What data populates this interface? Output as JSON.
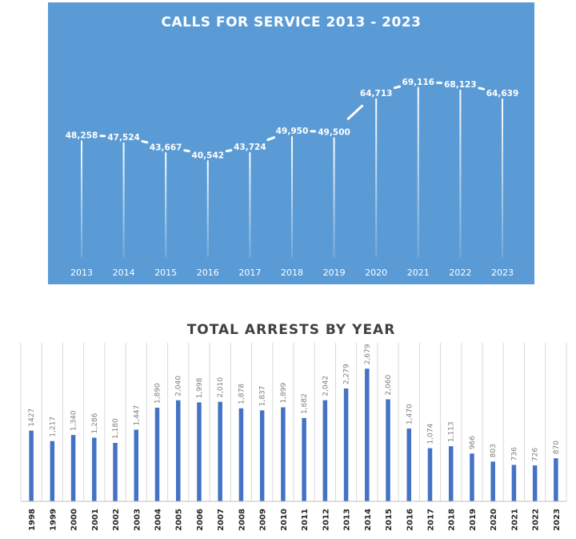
{
  "chart_data": [
    {
      "type": "line",
      "title": "CALLS FOR SERVICE 2013 - 2023",
      "categories": [
        "2013",
        "2014",
        "2015",
        "2016",
        "2017",
        "2018",
        "2019",
        "2020",
        "2021",
        "2022",
        "2023"
      ],
      "values": [
        48258,
        47524,
        43667,
        40542,
        43724,
        49950,
        49500,
        64713,
        69116,
        68123,
        64639
      ],
      "value_labels": [
        "48,258",
        "47,524",
        "43,667",
        "40,542",
        "43,724",
        "49,950",
        "49,500",
        "64,713",
        "69,116",
        "68,123",
        "64,639"
      ],
      "xlabel": "",
      "ylabel": "",
      "grid": false,
      "background": "#5b9bd5",
      "line_color": "#ffffff"
    },
    {
      "type": "bar",
      "title": "TOTAL ARRESTS BY YEAR",
      "categories": [
        "1998",
        "1999",
        "2000",
        "2001",
        "2002",
        "2003",
        "2004",
        "2005",
        "2006",
        "2007",
        "2008",
        "2009",
        "2010",
        "2011",
        "2012",
        "2013",
        "2014",
        "2015",
        "2016",
        "2017",
        "2018",
        "2019",
        "2020",
        "2021",
        "2022",
        "2023"
      ],
      "values": [
        1427,
        1217,
        1340,
        1286,
        1180,
        1447,
        1890,
        2040,
        1998,
        2010,
        1878,
        1837,
        1899,
        1682,
        2042,
        2279,
        2679,
        2060,
        1470,
        1074,
        1113,
        966,
        803,
        736,
        726,
        870
      ],
      "value_labels": [
        "1427",
        "1,217",
        "1,340",
        "1,286",
        "1,180",
        "1,447",
        "1,890",
        "2,040",
        "1,998",
        "2,010",
        "1,878",
        "1,837",
        "1,899",
        "1,682",
        "2,042",
        "2,279",
        "2,679",
        "2,060",
        "1,470",
        "1,074",
        "1,113",
        "966",
        "803",
        "736",
        "726",
        "870"
      ],
      "xlabel": "",
      "ylabel": "",
      "ylim": [
        0,
        2700
      ],
      "grid": true,
      "bar_color": "#4472c4"
    }
  ]
}
